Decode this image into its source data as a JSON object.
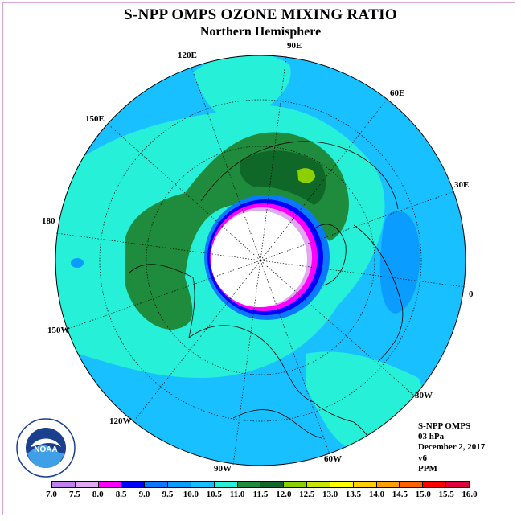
{
  "header": {
    "title": "S-NPP OMPS OZONE MIXING RATIO",
    "subtitle": "Northern Hemisphere"
  },
  "longitude_labels": [
    "90E",
    "60E",
    "30E",
    "0",
    "30W",
    "60W",
    "90W",
    "120W",
    "150W",
    "180",
    "150E",
    "120E"
  ],
  "info": {
    "instrument": "S-NPP OMPS",
    "level": "03 hPa",
    "date": "December 2, 2017",
    "version": "v6",
    "units": "PPM"
  },
  "logo": {
    "icon": "noaa-logo-icon",
    "text": "NOAA"
  },
  "legend": {
    "tick_labels": [
      "7.0",
      "7.5",
      "8.0",
      "8.5",
      "9.0",
      "9.5",
      "10.0",
      "10.5",
      "11.0",
      "11.5",
      "12.0",
      "12.5",
      "13.0",
      "13.5",
      "14.0",
      "14.5",
      "15.0",
      "15.5",
      "16.0"
    ],
    "colors": [
      "#c080f0",
      "#e0a8f0",
      "#ff00ff",
      "#0000ff",
      "#0a78ff",
      "#0a9cff",
      "#18c0ff",
      "#26f0d8",
      "#1e8c3c",
      "#106828",
      "#8cd000",
      "#c8e600",
      "#ffff00",
      "#ffd000",
      "#ffa000",
      "#ff6000",
      "#ff0000",
      "#e00040",
      "#8b5a3c"
    ]
  }
}
